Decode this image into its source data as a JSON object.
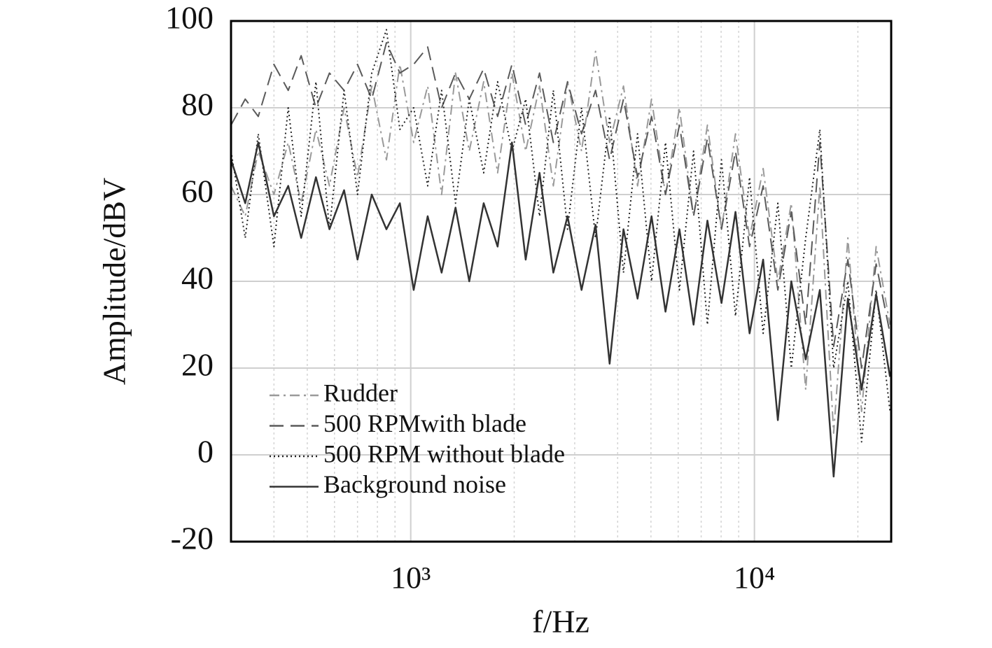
{
  "chart_data": {
    "type": "line",
    "x_label": "f/Hz",
    "y_label": "Amplitude/dBV",
    "x_scale": "log",
    "xlim": [
      300,
      25000
    ],
    "ylim": [
      -20,
      100
    ],
    "xticks": [
      {
        "value": 1000,
        "label": "10³"
      },
      {
        "value": 10000,
        "label": "10⁴"
      }
    ],
    "yticks": [
      -20,
      0,
      20,
      40,
      60,
      80,
      100
    ],
    "x_minor_grid": [
      400,
      500,
      600,
      700,
      800,
      900,
      2000,
      3000,
      4000,
      5000,
      6000,
      7000,
      8000,
      9000,
      20000
    ],
    "grid": true,
    "legend": "lower left",
    "x": [
      300,
      330,
      360,
      400,
      440,
      480,
      530,
      580,
      640,
      700,
      770,
      850,
      930,
      1020,
      1120,
      1230,
      1350,
      1480,
      1630,
      1790,
      1970,
      2160,
      2370,
      2600,
      2860,
      3140,
      3450,
      3790,
      4160,
      4570,
      5020,
      5510,
      6050,
      6650,
      7300,
      8020,
      8810,
      9680,
      10600,
      11700,
      12800,
      14100,
      15500,
      17000,
      18700,
      20500,
      22600,
      24800
    ],
    "series": [
      {
        "name": "Rudder",
        "color": "#9a9a9a",
        "dash": "14 6 3 6",
        "values": [
          62,
          55,
          70,
          60,
          72,
          58,
          75,
          62,
          80,
          64,
          85,
          68,
          90,
          72,
          85,
          60,
          88,
          70,
          86,
          65,
          88,
          70,
          85,
          62,
          86,
          70,
          93,
          72,
          85,
          62,
          82,
          60,
          80,
          55,
          76,
          52,
          74,
          50,
          66,
          40,
          58,
          15,
          62,
          5,
          50,
          10,
          48,
          30
        ]
      },
      {
        "name": "500 RPMwith blade",
        "color": "#5a5a5a",
        "dash": "20 10",
        "values": [
          76,
          82,
          78,
          90,
          84,
          92,
          80,
          88,
          84,
          90,
          82,
          95,
          88,
          90,
          94,
          80,
          88,
          82,
          89,
          78,
          90,
          76,
          88,
          72,
          86,
          74,
          84,
          68,
          82,
          64,
          78,
          60,
          76,
          55,
          73,
          52,
          70,
          48,
          62,
          38,
          56,
          30,
          72,
          25,
          45,
          20,
          44,
          28
        ]
      },
      {
        "name": "500 RPM without blade",
        "color": "#222222",
        "dash": "2 4",
        "values": [
          70,
          50,
          74,
          48,
          80,
          55,
          86,
          52,
          84,
          60,
          88,
          98,
          75,
          80,
          62,
          84,
          58,
          82,
          65,
          86,
          70,
          82,
          55,
          84,
          52,
          80,
          50,
          78,
          42,
          74,
          40,
          72,
          38,
          70,
          30,
          68,
          32,
          64,
          28,
          58,
          20,
          50,
          75,
          20,
          40,
          3,
          38,
          10
        ]
      },
      {
        "name": "Background noise",
        "color": "#333333",
        "dash": "none",
        "values": [
          68,
          58,
          72,
          55,
          62,
          50,
          64,
          52,
          61,
          45,
          60,
          52,
          58,
          38,
          55,
          42,
          57,
          40,
          58,
          48,
          72,
          45,
          65,
          42,
          55,
          38,
          53,
          21,
          52,
          36,
          55,
          33,
          52,
          30,
          54,
          35,
          56,
          28,
          45,
          8,
          40,
          22,
          38,
          -5,
          36,
          15,
          37,
          18
        ]
      }
    ]
  }
}
